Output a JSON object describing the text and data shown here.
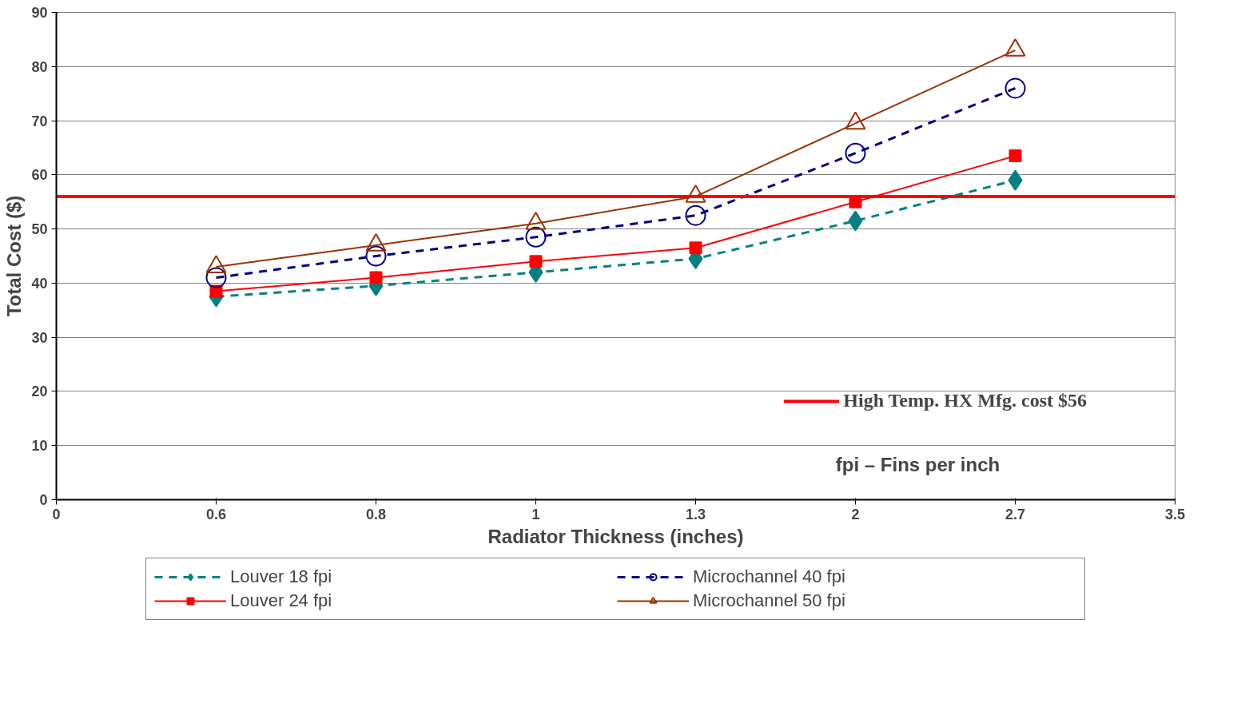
{
  "chart_data": {
    "type": "line",
    "xlabel": "Radiator Thickness (inches)",
    "ylabel": "Total Cost ($)",
    "categories": [
      "0",
      "0.6",
      "0.8",
      "1",
      "1.3",
      "2",
      "2.7",
      "3.5"
    ],
    "ylim": [
      0,
      90
    ],
    "yticks": [
      0,
      10,
      20,
      30,
      40,
      50,
      60,
      70,
      80,
      90
    ],
    "grid": "y",
    "legend": "bottom",
    "series": [
      {
        "name": "Louver 18 fpi",
        "color": "#008080",
        "marker": "diamond",
        "line_style": "dashed",
        "values": [
          null,
          37.5,
          39.5,
          42,
          44.5,
          51.5,
          59,
          null
        ]
      },
      {
        "name": "Louver 24 fpi",
        "color": "#ff0000",
        "marker": "square",
        "line_style": "solid",
        "values": [
          null,
          38.5,
          41,
          44,
          46.5,
          55,
          63.5,
          null
        ]
      },
      {
        "name": "Microchannel 40 fpi",
        "color": "#000080",
        "marker": "circle",
        "line_style": "dashed",
        "values": [
          null,
          41,
          45,
          48.5,
          52.5,
          64,
          76,
          null
        ]
      },
      {
        "name": "Microchannel 50 fpi",
        "color": "#993300",
        "marker": "triangle",
        "line_style": "solid",
        "values": [
          null,
          43,
          47,
          51,
          56,
          69.5,
          83,
          null
        ]
      }
    ],
    "ref_lines": [
      {
        "axis": "y",
        "value": 56,
        "label": "High Temp. HX Mfg. cost $56",
        "color": "#ff0000"
      }
    ],
    "annotations": [
      "fpi – Fins per inch"
    ]
  }
}
